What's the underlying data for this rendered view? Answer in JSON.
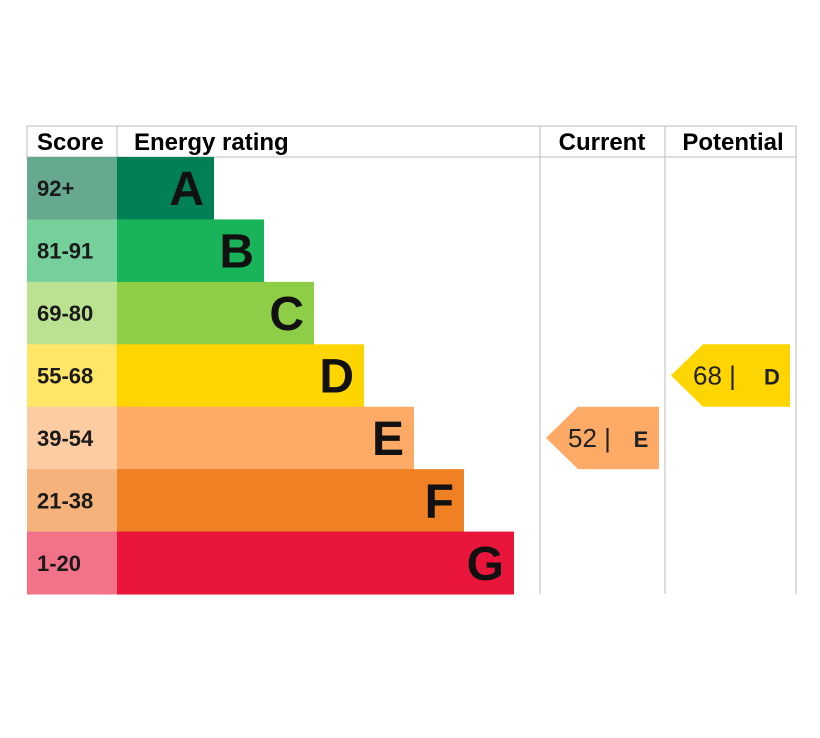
{
  "chart_data": {
    "type": "bar",
    "headers": {
      "score": "Score",
      "rating": "Energy rating",
      "current": "Current",
      "potential": "Potential"
    },
    "bands": [
      {
        "letter": "A",
        "score": "92+",
        "color": "#008054",
        "score_color": "#66a98f",
        "min": 92,
        "max": 100
      },
      {
        "letter": "B",
        "score": "81-91",
        "color": "#19b459",
        "score_color": "#75d09b",
        "min": 81,
        "max": 91
      },
      {
        "letter": "C",
        "score": "69-80",
        "color": "#8dce46",
        "score_color": "#bbe290",
        "min": 69,
        "max": 80
      },
      {
        "letter": "D",
        "score": "55-68",
        "color": "#ffd500",
        "score_color": "#ffe666",
        "min": 55,
        "max": 68
      },
      {
        "letter": "E",
        "score": "39-54",
        "color": "#fcaa65",
        "score_color": "#fdcca3",
        "min": 39,
        "max": 54
      },
      {
        "letter": "F",
        "score": "21-38",
        "color": "#ef8023",
        "score_color": "#f5b37b",
        "min": 21,
        "max": 38
      },
      {
        "letter": "G",
        "score": "1-20",
        "color": "#e9153b",
        "score_color": "#f27389",
        "min": 1,
        "max": 20
      }
    ],
    "current": {
      "value": 52,
      "value_label": "52 |",
      "letter": "E",
      "color": "#fcaa65"
    },
    "potential": {
      "value": 68,
      "value_label": "68 |",
      "letter": "D",
      "color": "#ffd500"
    }
  }
}
